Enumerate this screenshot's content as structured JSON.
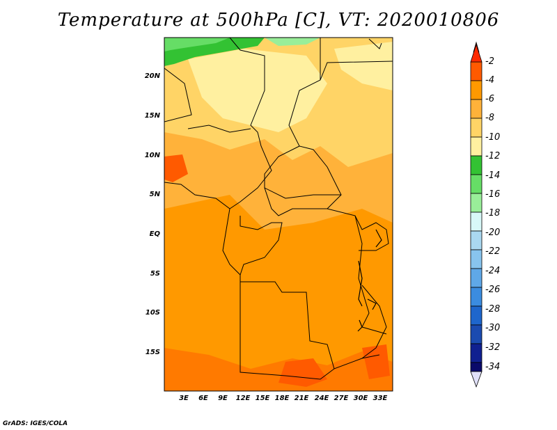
{
  "title": "Temperature at 500hPa [C], VT: 2020010806",
  "credit": "GrADS: IGES/COLA",
  "map": {
    "type": "filled-contour-map",
    "lat_labels": [
      "20N",
      "15N",
      "10N",
      "5N",
      "EQ",
      "5S",
      "10S",
      "15S"
    ],
    "lon_labels": [
      "3E",
      "6E",
      "9E",
      "12E",
      "15E",
      "18E",
      "21E",
      "24E",
      "27E",
      "30E",
      "33E"
    ]
  },
  "colorbar": {
    "labels": [
      "-2",
      "-4",
      "-6",
      "-8",
      "-10",
      "-12",
      "-14",
      "-16",
      "-18",
      "-20",
      "-22",
      "-24",
      "-26",
      "-28",
      "-30",
      "-32",
      "-34"
    ],
    "colors": [
      "#ff2a00",
      "#ff5a00",
      "#ff9900",
      "#ffb23a",
      "#ffd466",
      "#fff0a0",
      "#33c233",
      "#66dd66",
      "#99ee99",
      "#d8f8f8",
      "#aad8f0",
      "#88c4ee",
      "#5fa8e8",
      "#3b8ce0",
      "#1e66cc",
      "#1b4bb0",
      "#102090",
      "#0a0a6a",
      "#e0e0f8"
    ]
  }
}
